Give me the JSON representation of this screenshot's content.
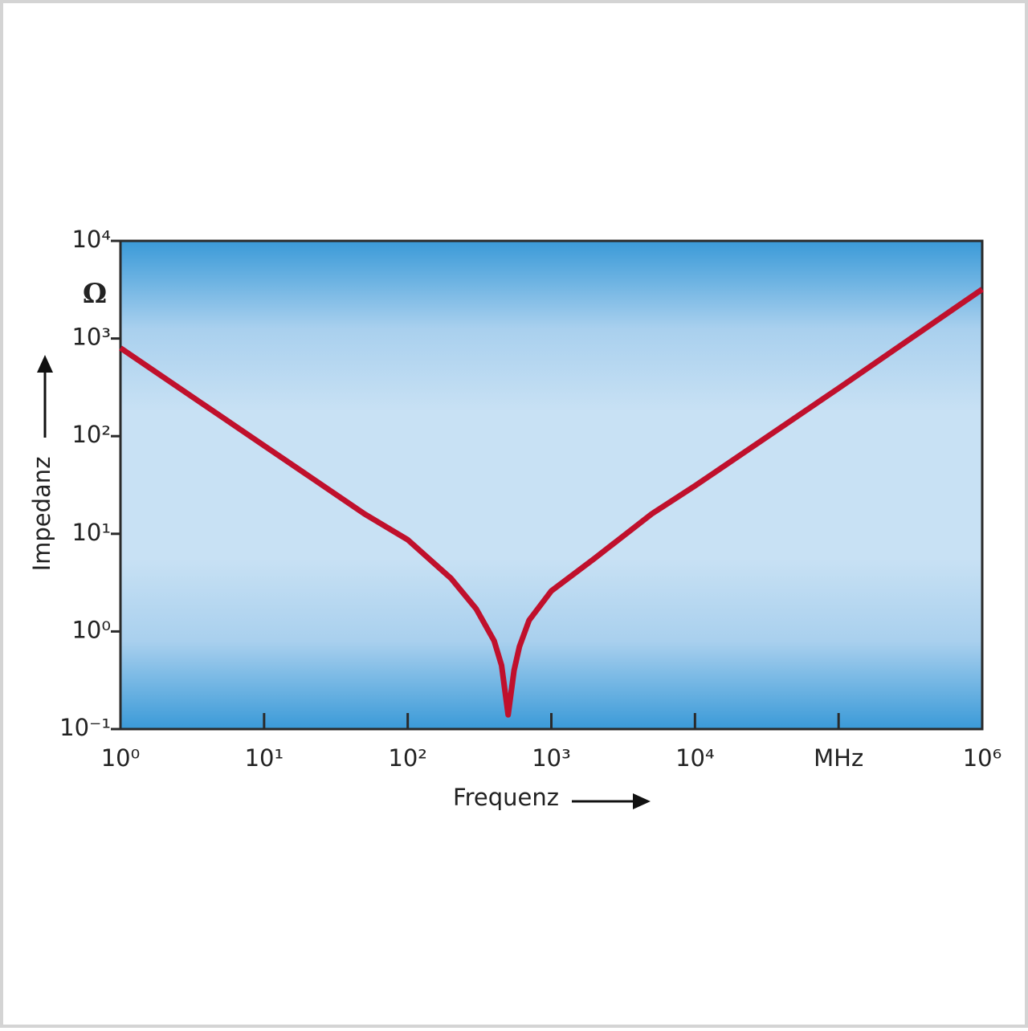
{
  "chart_data": {
    "type": "line",
    "x_label": "Frequenz",
    "y_label": "Impedanz",
    "y_unit": "Ω",
    "x": [
      1,
      2,
      5,
      10,
      20,
      50,
      100,
      150,
      200,
      300,
      400,
      450,
      500,
      550,
      600,
      700,
      1000,
      2000,
      5000,
      10000,
      100000,
      1000000
    ],
    "series": [
      {
        "color": "#c0102c",
        "values": [
          800,
          400,
          160,
          80,
          40,
          16,
          8.7,
          5.1,
          3.5,
          1.7,
          0.8,
          0.45,
          0.14,
          0.4,
          0.7,
          1.3,
          2.6,
          5.6,
          16,
          31,
          310,
          3200
        ]
      }
    ],
    "xscale": "log",
    "yscale": "log",
    "xlim": [
      1,
      1000000
    ],
    "ylim": [
      0.1,
      10000
    ],
    "xticks": [
      {
        "value": 1,
        "label": "10⁰"
      },
      {
        "value": 10,
        "label": "10¹"
      },
      {
        "value": 100,
        "label": "10²"
      },
      {
        "value": 1000,
        "label": "10³"
      },
      {
        "value": 10000,
        "label": "10⁴"
      },
      {
        "value": 100000,
        "label": "MHz"
      },
      {
        "value": 1000000,
        "label": "10⁶"
      }
    ],
    "yticks": [
      {
        "value": 0.1,
        "label": "10⁻¹"
      },
      {
        "value": 1,
        "label": "10⁰"
      },
      {
        "value": 10,
        "label": "10¹"
      },
      {
        "value": 100,
        "label": "10²"
      },
      {
        "value": 1000,
        "label": "10³"
      },
      {
        "value": 10000,
        "label": "10⁴"
      }
    ]
  }
}
